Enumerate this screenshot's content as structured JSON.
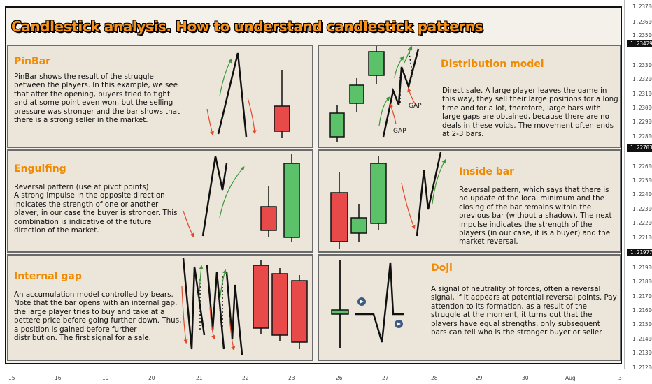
{
  "title": "Candlestick analysis. How to understand candlestick patterns",
  "panels": {
    "pinbar": {
      "title": "PinBar",
      "text": "PinBar shows the result of the struggle between the players. In this example, we see that after the opening, buyers tried to fight and at some point even won, but the selling pressure was stronger and the bar shows that there is a strong seller in the market."
    },
    "distribution": {
      "title": "Distribution model",
      "text": "Direct sale. A large player leaves the game in this way, they sell their large positions for a long time and for a lot, therefore, large bars with large gaps are obtained, because there are no deals in these voids. The movement often ends at 2-3 bars.",
      "gap1": "GAP",
      "gap2": "GAP"
    },
    "engulfing": {
      "title": "Engulfing",
      "text": "Reversal pattern (use at pivot points)\nA strong impulse in the opposite direction indicates the strength of one or another player, in our case the buyer is stronger. This combination is indicative of the future direction of the market."
    },
    "insidebar": {
      "title": "Inside bar",
      "text": "Reversal pattern, which says that there is no update of the local minimum and the closing of the bar remains within the previous bar (without a shadow). The next impulse indicates the strength of the players (in our case, it is a buyer) and the market reversal."
    },
    "internalgap": {
      "title": "Internal gap",
      "text": "An accumulation model controlled by bears. Note that the bar opens with an internal gap, the large player tries to buy and take at a bettere price before going further down. Thus, a position is gained before further distribution. The first signal for a sale."
    },
    "doji": {
      "title": "Doji",
      "text": "A signal of neutrality of forces, often a reversal signal, if it appears at potential reversal points. Pay attention to its formation, as a result of the struggle at the moment, it turns out that the players have equal strengths, only subsequent bars can tell who is the stronger buyer or seller"
    }
  },
  "chart_data": {
    "type": "bar",
    "y_ticks": [
      "1.23700",
      "1.23600",
      "1.23500",
      "1.23300",
      "1.23200",
      "1.23100",
      "1.23000",
      "1.22900",
      "1.22800",
      "1.22600",
      "1.22500",
      "1.22400",
      "1.22300",
      "1.22200",
      "1.22100",
      "1.21900",
      "1.21800",
      "1.21700",
      "1.21600",
      "1.21500",
      "1.21400",
      "1.21300",
      "1.21200"
    ],
    "y_badges": [
      "1.23429",
      "1.22703",
      "1.21977"
    ],
    "x_ticks": [
      "15",
      "16",
      "19",
      "20",
      "21",
      "22",
      "23",
      "26",
      "27",
      "28",
      "29",
      "30",
      "Aug",
      "3"
    ],
    "colors": {
      "bull": "#5cc26a",
      "bear": "#e84a4a",
      "up_arrow": "#3a9a3a",
      "down_arrow": "#e04a2a"
    }
  }
}
